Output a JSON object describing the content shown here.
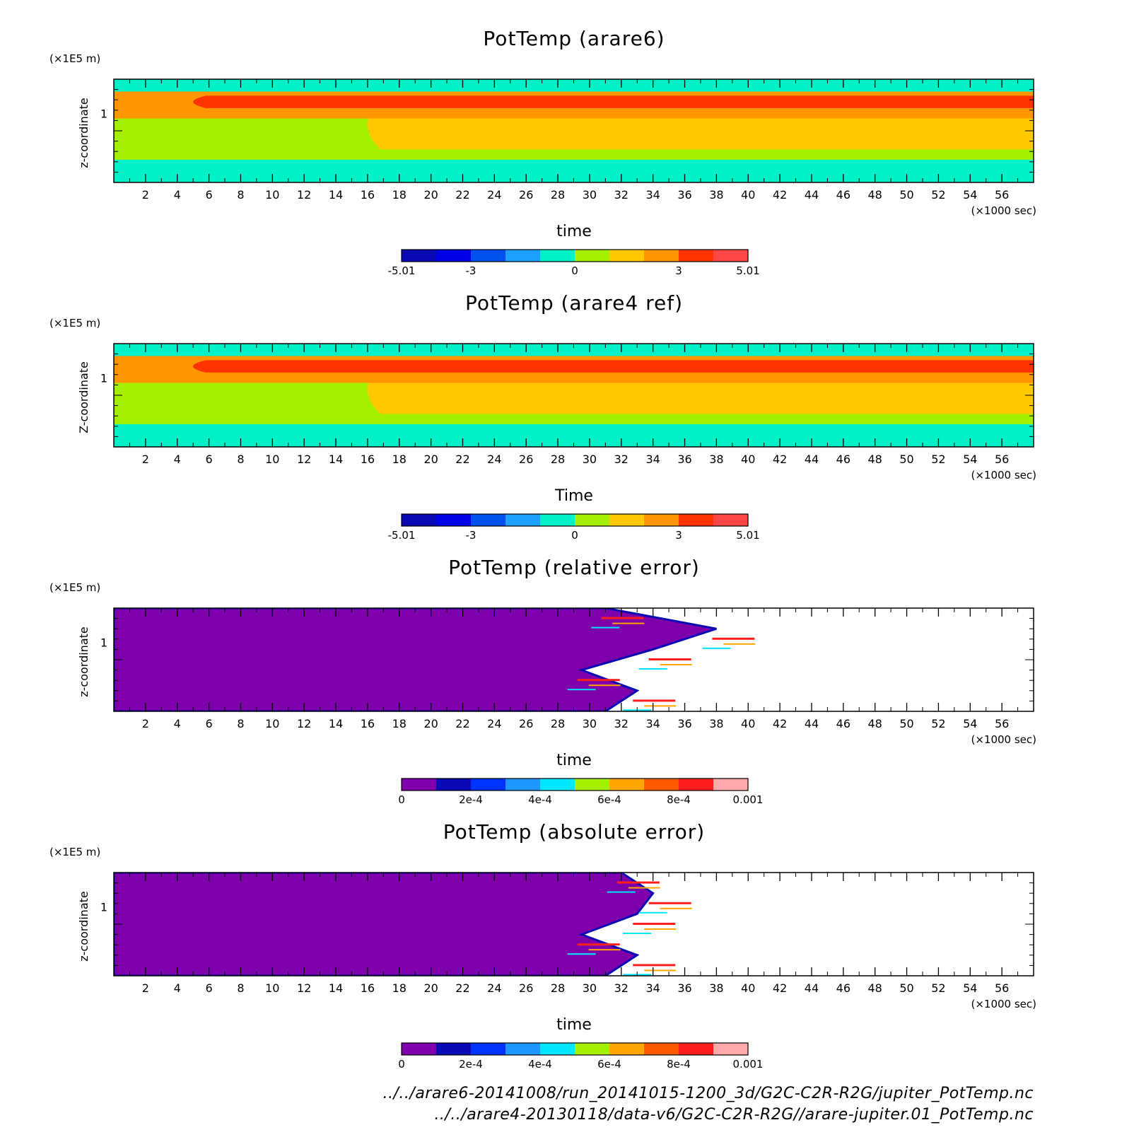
{
  "chart_data": [
    {
      "type": "heatmap",
      "title": "PotTemp (arare6)",
      "xlabel": "time",
      "x_unit": "(×1000 sec)",
      "ylabel": "z-coordinate",
      "y_unit": "(×1E5 m)",
      "xlim": [
        0,
        58
      ],
      "x_ticks": [
        "2",
        "4",
        "6",
        "8",
        "10",
        "12",
        "14",
        "16",
        "18",
        "20",
        "22",
        "24",
        "26",
        "28",
        "30",
        "32",
        "34",
        "36",
        "38",
        "40",
        "42",
        "44",
        "46",
        "48",
        "50",
        "52",
        "54",
        "56"
      ],
      "y_ticks": [
        "1"
      ],
      "colorbar": {
        "colors": [
          "#0a0ab4",
          "#0000e6",
          "#0050f0",
          "#1ea0ff",
          "#00f0c8",
          "#a5f000",
          "#ffc800",
          "#ff9600",
          "#ff3200",
          "#ff4646"
        ],
        "labels": [
          {
            "v": 0,
            "t": "-5.01"
          },
          {
            "v": 2,
            "t": "-3"
          },
          {
            "v": 5,
            "t": "0"
          },
          {
            "v": 8,
            "t": "3"
          },
          {
            "v": 10,
            "t": "5.01"
          }
        ]
      },
      "bands": [
        {
          "color": "#00f0c8",
          "y": [
            0.0,
            1.0
          ]
        },
        {
          "color": "#a5f000",
          "y": [
            0.22,
            0.84
          ]
        },
        {
          "color": "#ffc800",
          "y": [
            0.32,
            0.8
          ],
          "x_from": 16
        },
        {
          "color": "#ff9600",
          "y": [
            0.62,
            0.88
          ]
        },
        {
          "color": "#ff3200",
          "y": [
            0.72,
            0.84
          ],
          "x_from": 5
        }
      ]
    },
    {
      "type": "heatmap",
      "title": "PotTemp (arare4 ref)",
      "xlabel": "Time",
      "x_unit": "(×1000 sec)",
      "ylabel": "Z-coordinate",
      "y_unit": "(×1E5 m)",
      "xlim": [
        0,
        58
      ],
      "x_ticks": [
        "2",
        "4",
        "6",
        "8",
        "10",
        "12",
        "14",
        "16",
        "18",
        "20",
        "22",
        "24",
        "26",
        "28",
        "30",
        "32",
        "34",
        "36",
        "38",
        "40",
        "42",
        "44",
        "46",
        "48",
        "50",
        "52",
        "54",
        "56"
      ],
      "y_ticks": [
        "1"
      ],
      "colorbar": {
        "colors": [
          "#0a0ab4",
          "#0000e6",
          "#0050f0",
          "#1ea0ff",
          "#00f0c8",
          "#a5f000",
          "#ffc800",
          "#ff9600",
          "#ff3200",
          "#ff4646"
        ],
        "labels": [
          {
            "v": 0,
            "t": "-5.01"
          },
          {
            "v": 2,
            "t": "-3"
          },
          {
            "v": 5,
            "t": "0"
          },
          {
            "v": 8,
            "t": "3"
          },
          {
            "v": 10,
            "t": "5.01"
          }
        ]
      },
      "bands": [
        {
          "color": "#00f0c8",
          "y": [
            0.0,
            1.0
          ]
        },
        {
          "color": "#a5f000",
          "y": [
            0.22,
            0.84
          ]
        },
        {
          "color": "#ffc800",
          "y": [
            0.32,
            0.8
          ],
          "x_from": 16
        },
        {
          "color": "#ff9600",
          "y": [
            0.62,
            0.88
          ]
        },
        {
          "color": "#ff3200",
          "y": [
            0.72,
            0.84
          ],
          "x_from": 5
        }
      ]
    },
    {
      "type": "heatmap",
      "title": "PotTemp (relative error)",
      "xlabel": "time",
      "x_unit": "(×1000 sec)",
      "ylabel": "z-coordinate",
      "y_unit": "(×1E5 m)",
      "xlim": [
        0,
        58
      ],
      "x_ticks": [
        "2",
        "4",
        "6",
        "8",
        "10",
        "12",
        "14",
        "16",
        "18",
        "20",
        "22",
        "24",
        "26",
        "28",
        "30",
        "32",
        "34",
        "36",
        "38",
        "40",
        "42",
        "44",
        "46",
        "48",
        "50",
        "52",
        "54",
        "56"
      ],
      "y_ticks": [
        "1"
      ],
      "colorbar": {
        "colors": [
          "#7d00aa",
          "#0a0ab4",
          "#0032ff",
          "#1e96ff",
          "#00e6ff",
          "#a5f000",
          "#ffa500",
          "#ff5a00",
          "#ff1e1e",
          "#ffaaaa"
        ],
        "labels": [
          {
            "v": 0,
            "t": "0"
          },
          {
            "v": 2,
            "t": "2e-4"
          },
          {
            "v": 4,
            "t": "4e-4"
          },
          {
            "v": 6,
            "t": "6e-4"
          },
          {
            "v": 8,
            "t": "8e-4"
          },
          {
            "v": 10,
            "t": "0.001"
          }
        ]
      },
      "zero_region_color": "#7d00aa",
      "zero_region_edge_x": [
        31,
        38,
        34,
        29.5,
        33,
        31
      ]
    },
    {
      "type": "heatmap",
      "title": "PotTemp (absolute error)",
      "xlabel": "time",
      "x_unit": "(×1000 sec)",
      "ylabel": "z-coordinate",
      "y_unit": "(×1E5 m)",
      "xlim": [
        0,
        58
      ],
      "x_ticks": [
        "2",
        "4",
        "6",
        "8",
        "10",
        "12",
        "14",
        "16",
        "18",
        "20",
        "22",
        "24",
        "26",
        "28",
        "30",
        "32",
        "34",
        "36",
        "38",
        "40",
        "42",
        "44",
        "46",
        "48",
        "50",
        "52",
        "54",
        "56"
      ],
      "y_ticks": [
        "1"
      ],
      "colorbar": {
        "colors": [
          "#7d00aa",
          "#0a0ab4",
          "#0032ff",
          "#1e96ff",
          "#00e6ff",
          "#a5f000",
          "#ffa500",
          "#ff5a00",
          "#ff1e1e",
          "#ffaaaa"
        ],
        "labels": [
          {
            "v": 0,
            "t": "0"
          },
          {
            "v": 2,
            "t": "2e-4"
          },
          {
            "v": 4,
            "t": "4e-4"
          },
          {
            "v": 6,
            "t": "6e-4"
          },
          {
            "v": 8,
            "t": "8e-4"
          },
          {
            "v": 10,
            "t": "0.001"
          }
        ]
      },
      "zero_region_color": "#7d00aa",
      "zero_region_edge_x": [
        32,
        34,
        33,
        29.5,
        33,
        31
      ]
    }
  ],
  "footer": {
    "line1": "../../arare6-20141008/run_20141015-1200_3d/G2C-C2R-R2G/jupiter_PotTemp.nc",
    "line2": "../../arare4-20130118/data-v6/G2C-C2R-R2G//arare-jupiter.01_PotTemp.nc"
  }
}
